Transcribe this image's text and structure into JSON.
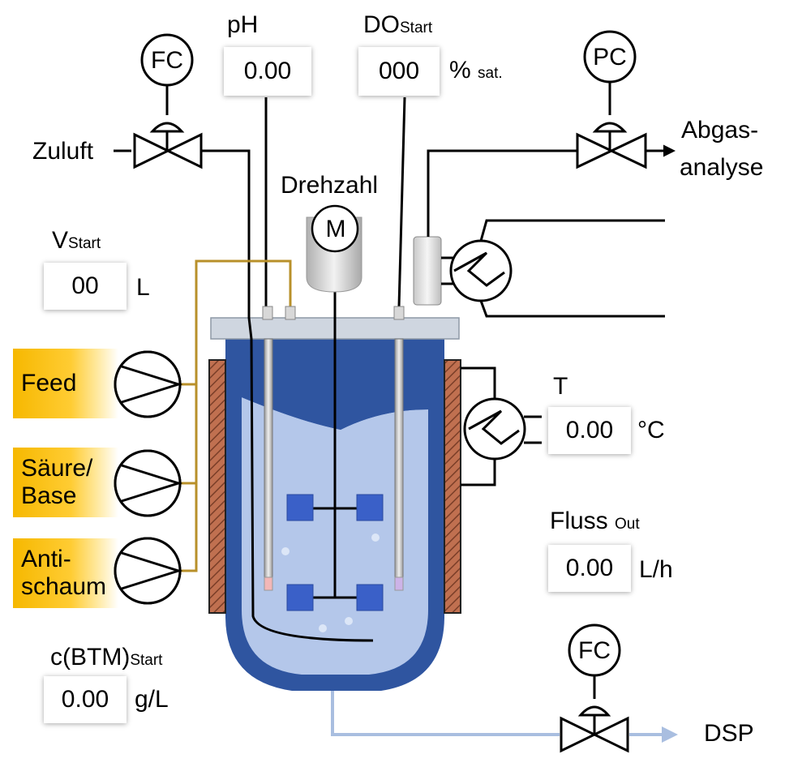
{
  "colors": {
    "vessel_dark": "#2f55a0",
    "liquid": "#b4c7ea",
    "gold_line": "#b8902a",
    "drain_line": "#a9bee0",
    "jacket": "#c07050",
    "impeller_blue": "#3a60c8"
  },
  "valves": {
    "air_in": {
      "controller": "FC",
      "label": "Zuluft"
    },
    "offgas": {
      "controller": "PC",
      "label_line1": "Abgas-",
      "label_line2": "analyse"
    },
    "outlet": {
      "controller": "FC",
      "label": "DSP"
    }
  },
  "probes": {
    "ph": {
      "label": "pH",
      "value": "0.00"
    },
    "do": {
      "label_main": "DO",
      "label_sub": "Start",
      "value": "000",
      "unit_main": "%",
      "unit_sub": "sat."
    }
  },
  "motor": {
    "label": "Drehzahl",
    "symbol": "M"
  },
  "volume": {
    "label_main": "V",
    "label_sub": "Start",
    "value": "00",
    "unit": "L"
  },
  "pumps": [
    {
      "line1": "Feed",
      "line2": ""
    },
    {
      "line1": "Säure/",
      "line2": "Base"
    },
    {
      "line1": "Anti-",
      "line2": "schaum"
    }
  ],
  "temperature": {
    "label": "T",
    "value": "0.00",
    "unit": "°C"
  },
  "flow_out": {
    "label_main": "Fluss",
    "label_sub": "Out",
    "value": "0.00",
    "unit": "L/h"
  },
  "btm": {
    "label_main": "c(BTM)",
    "label_sub": "Start",
    "value": "0.00",
    "unit": "g/L"
  }
}
